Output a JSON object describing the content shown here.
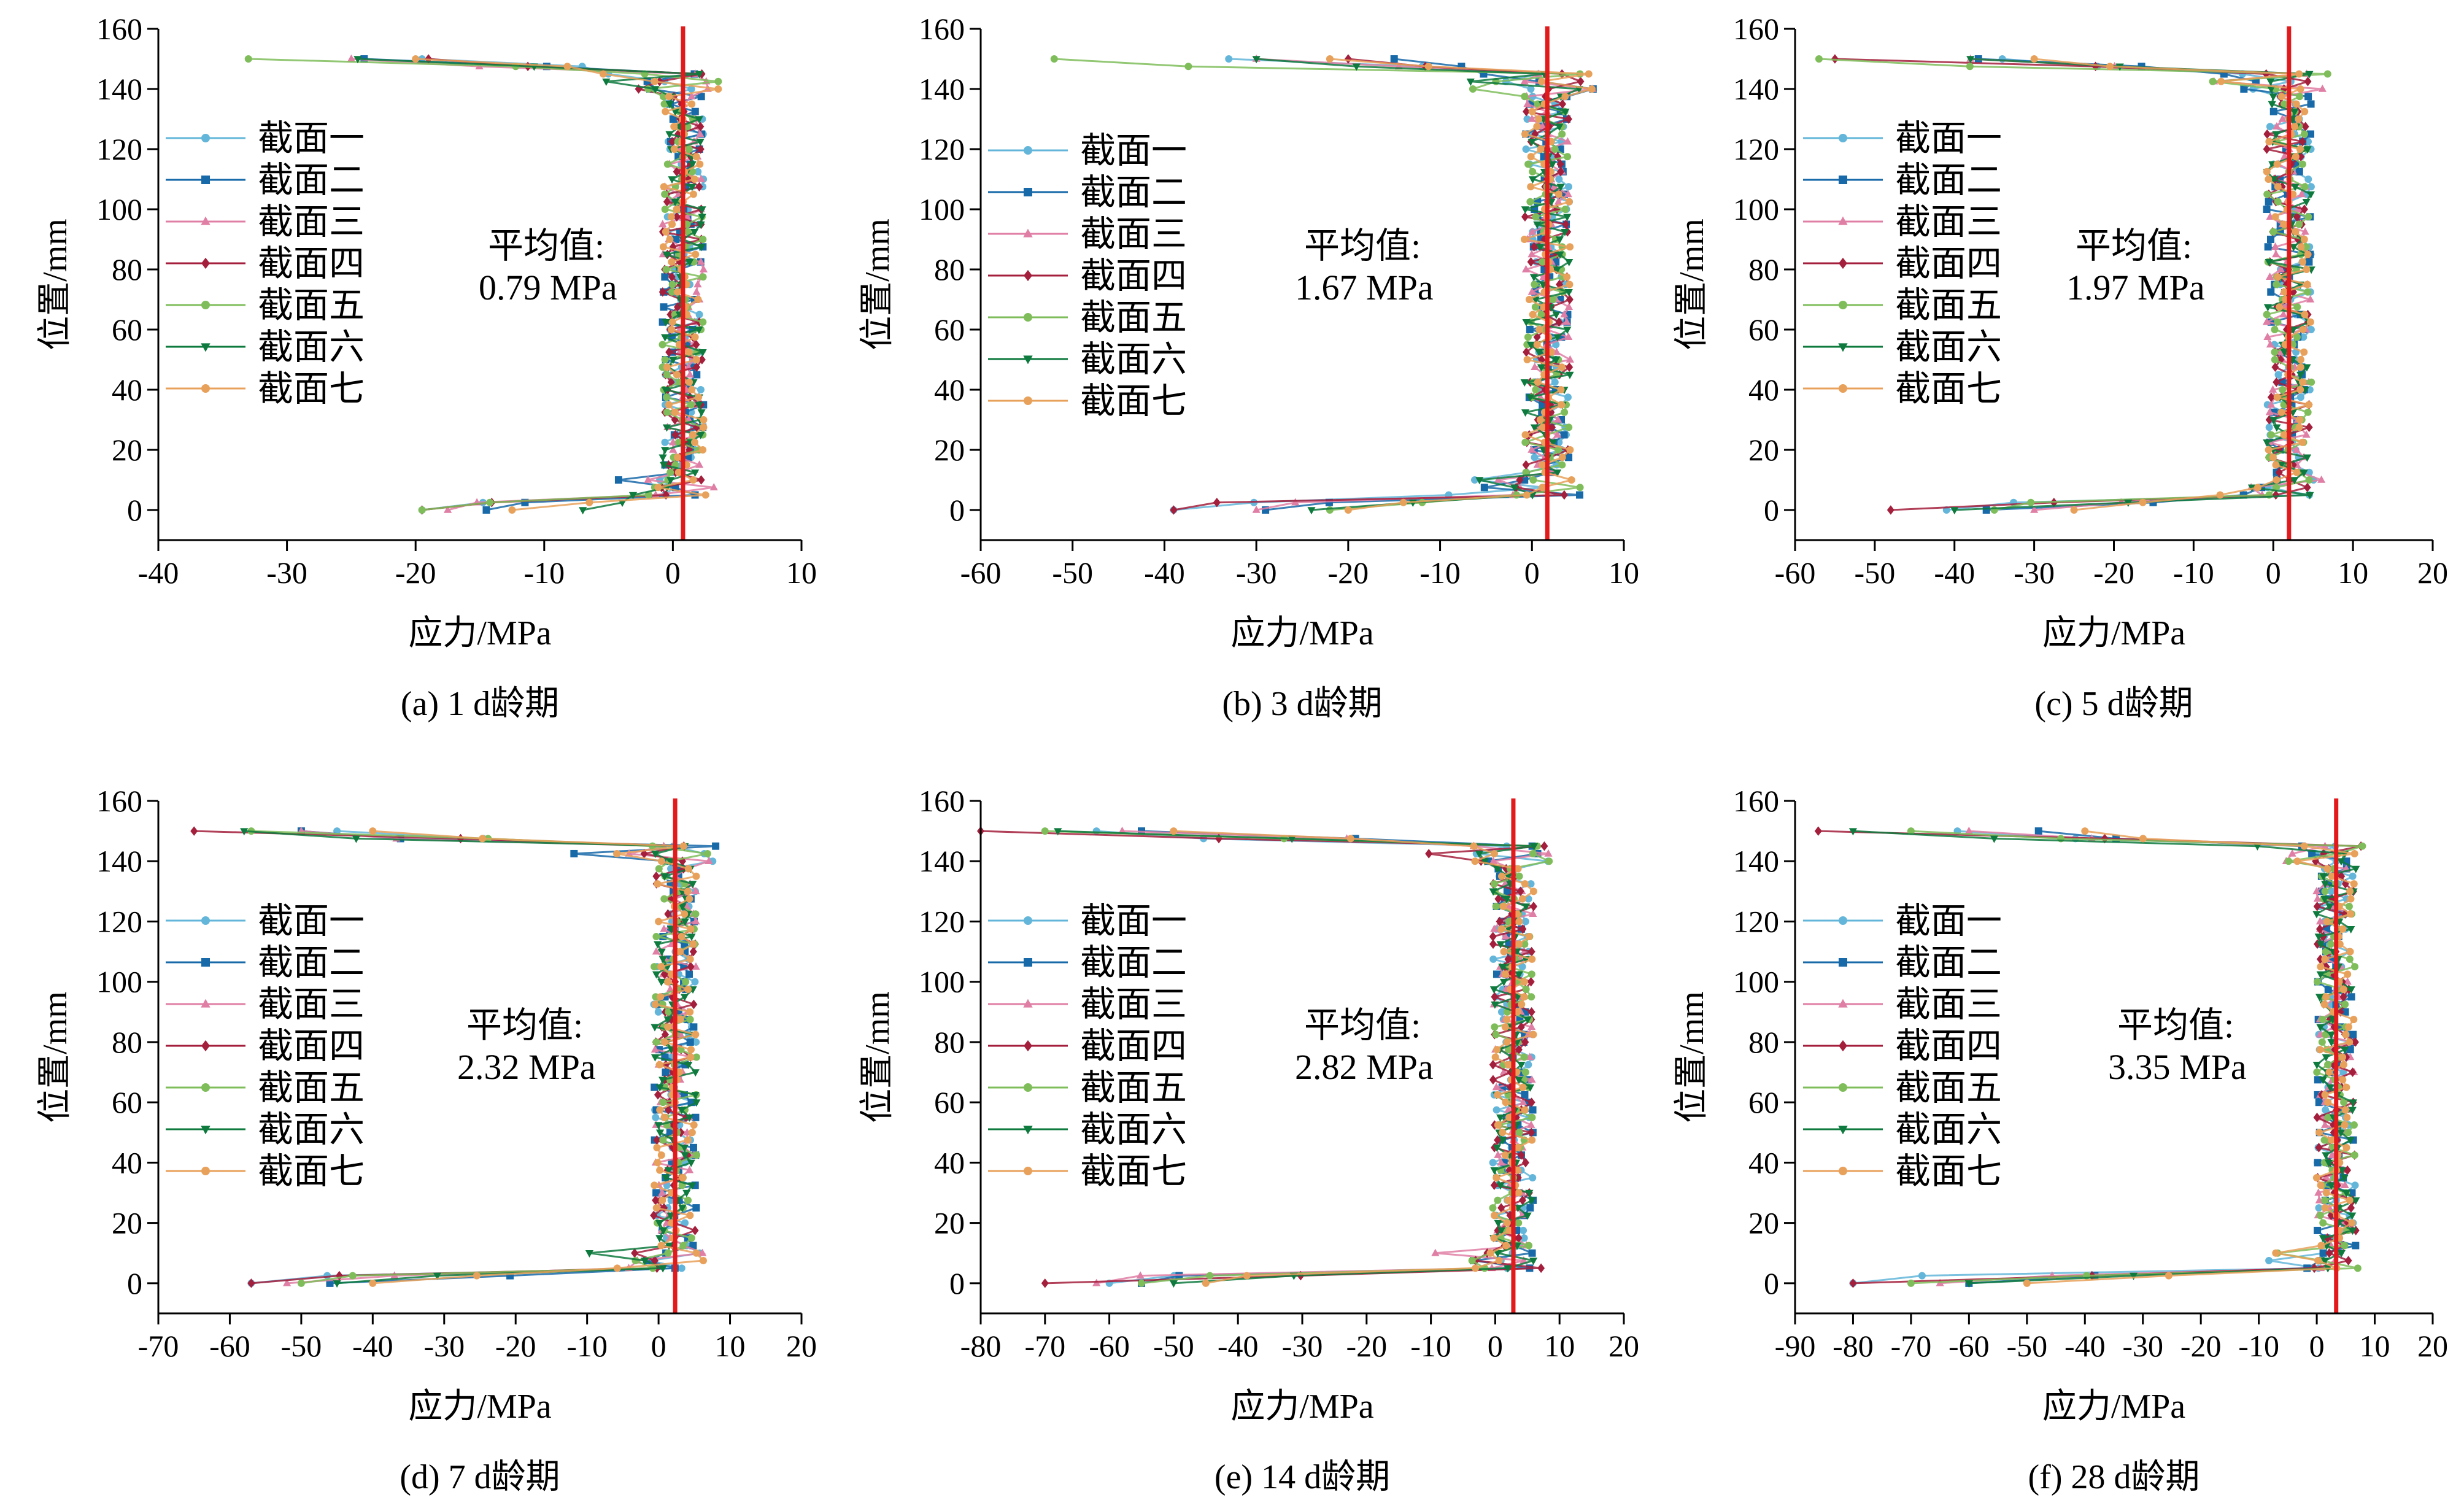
{
  "colors": {
    "series": [
      "#63b6d9",
      "#1769a8",
      "#e07fa5",
      "#a31f3c",
      "#7fbd5b",
      "#0e7a3e",
      "#e8a15b"
    ],
    "mean_line": "#e31a1c",
    "markers": [
      "circle",
      "square",
      "triangle",
      "diamond",
      "circle",
      "triangle-down",
      "circle"
    ]
  },
  "chart_data": [
    {
      "type": "scatter",
      "caption": "(a) 1 d龄期",
      "xlabel": "应力/MPa",
      "ylabel": "位置/mm",
      "xlim": [
        -40,
        10
      ],
      "xticks": [
        -40,
        -30,
        -20,
        -10,
        0,
        10
      ],
      "xtick_labels": [
        "-40",
        "-30",
        "-20",
        "-10",
        "0",
        "10"
      ],
      "ylim": [
        -10,
        160
      ],
      "yticks": [
        0,
        20,
        40,
        60,
        80,
        100,
        120,
        140,
        160
      ],
      "ytick_labels": [
        "0",
        "20",
        "40",
        "60",
        "80",
        "100",
        "120",
        "140",
        "160"
      ],
      "mean_label": "平均值:",
      "mean_value": "0.79 MPa",
      "mean": 0.79,
      "legend": [
        "截面一",
        "截面二",
        "截面三",
        "截面四",
        "截面五",
        "截面六",
        "截面七"
      ],
      "top_extremes": [
        -19.5,
        -24,
        -25,
        -19,
        -33,
        -24.5,
        -20
      ],
      "bottom_extremes": [
        -19.5,
        -14.5,
        -17.5,
        -19.5,
        -19.5,
        -7,
        -12.5
      ],
      "middle_jitter": 1.6
    },
    {
      "type": "scatter",
      "caption": "(b) 3 d龄期",
      "xlabel": "应力/MPa",
      "ylabel": "位置/mm",
      "xlim": [
        -60,
        10
      ],
      "xticks": [
        -60,
        -50,
        -40,
        -30,
        -20,
        -10,
        0,
        10
      ],
      "xtick_labels": [
        "-60",
        "-50",
        "-40",
        "-30",
        "-20",
        "-10",
        "0",
        "10"
      ],
      "ylim": [
        -10,
        160
      ],
      "yticks": [
        0,
        20,
        40,
        60,
        80,
        100,
        120,
        140,
        160
      ],
      "ytick_labels": [
        "0",
        "20",
        "40",
        "60",
        "80",
        "100",
        "120",
        "140",
        "160"
      ],
      "mean_label": "平均值:",
      "mean_value": "1.67 MPa",
      "mean": 1.67,
      "legend": [
        "截面一",
        "截面二",
        "截面三",
        "截面四",
        "截面五",
        "截面六",
        "截面七"
      ],
      "top_extremes": [
        -33,
        -15,
        -30,
        -20,
        -52,
        -30,
        -22
      ],
      "bottom_extremes": [
        -39,
        -29,
        -30,
        -39,
        -22,
        -24,
        -20
      ],
      "middle_jitter": 2.5
    },
    {
      "type": "scatter",
      "caption": "(c) 5 d龄期",
      "xlabel": "应力/MPa",
      "ylabel": "位置/mm",
      "xlim": [
        -60,
        20
      ],
      "xticks": [
        -60,
        -50,
        -40,
        -30,
        -20,
        -10,
        0,
        10,
        20
      ],
      "xtick_labels": [
        "-60",
        "-50",
        "-40",
        "-30",
        "-20",
        "-10",
        "0",
        "10",
        "20"
      ],
      "ylim": [
        -10,
        160
      ],
      "yticks": [
        0,
        20,
        40,
        60,
        80,
        100,
        120,
        140,
        160
      ],
      "ytick_labels": [
        "0",
        "20",
        "40",
        "60",
        "80",
        "100",
        "120",
        "140",
        "160"
      ],
      "mean_label": "平均值:",
      "mean_value": "1.97 MPa",
      "mean": 1.97,
      "legend": [
        "截面一",
        "截面二",
        "截面三",
        "截面四",
        "截面五",
        "截面六",
        "截面七"
      ],
      "top_extremes": [
        -34,
        -37,
        -38,
        -55,
        -57,
        -38,
        -30
      ],
      "bottom_extremes": [
        -41,
        -36,
        -30,
        -48,
        -35,
        -40,
        -25
      ],
      "middle_jitter": 2.8
    },
    {
      "type": "scatter",
      "caption": "(d) 7 d龄期",
      "xlabel": "应力/MPa",
      "ylabel": "位置/mm",
      "xlim": [
        -70,
        20
      ],
      "xticks": [
        -70,
        -60,
        -50,
        -40,
        -30,
        -20,
        -10,
        0,
        10,
        20
      ],
      "xtick_labels": [
        "-70",
        "-60",
        "-50",
        "-40",
        "-30",
        "-20",
        "-10",
        "0",
        "10",
        "20"
      ],
      "ylim": [
        -10,
        160
      ],
      "yticks": [
        0,
        20,
        40,
        60,
        80,
        100,
        120,
        140,
        160
      ],
      "ytick_labels": [
        "0",
        "20",
        "40",
        "60",
        "80",
        "100",
        "120",
        "140",
        "160"
      ],
      "mean_label": "平均值:",
      "mean_value": "2.32 MPa",
      "mean": 2.32,
      "legend": [
        "截面一",
        "截面二",
        "截面三",
        "截面四",
        "截面五",
        "截面六",
        "截面七"
      ],
      "top_extremes": [
        -45,
        -50,
        -50,
        -65,
        -57,
        -58,
        -40
      ],
      "bottom_extremes": [
        -57,
        -46,
        -52,
        -57,
        -50,
        -45,
        -40
      ],
      "middle_jitter": 3.0
    },
    {
      "type": "scatter",
      "caption": "(e) 14 d龄期",
      "xlabel": "应力/MPa",
      "ylabel": "位置/mm",
      "xlim": [
        -80,
        20
      ],
      "xticks": [
        -80,
        -70,
        -60,
        -50,
        -40,
        -30,
        -20,
        -10,
        0,
        10,
        20
      ],
      "xtick_labels": [
        "-80",
        "-70",
        "-60",
        "-50",
        "-40",
        "-30",
        "-20",
        "-10",
        "0",
        "10",
        "20"
      ],
      "ylim": [
        -10,
        160
      ],
      "yticks": [
        0,
        20,
        40,
        60,
        80,
        100,
        120,
        140,
        160
      ],
      "ytick_labels": [
        "0",
        "20",
        "40",
        "60",
        "80",
        "100",
        "120",
        "140",
        "160"
      ],
      "mean_label": "平均值:",
      "mean_value": "2.82 MPa",
      "mean": 2.82,
      "legend": [
        "截面一",
        "截面二",
        "截面三",
        "截面四",
        "截面五",
        "截面六",
        "截面七"
      ],
      "top_extremes": [
        -62,
        -55,
        -58,
        -80,
        -70,
        -68,
        -50
      ],
      "bottom_extremes": [
        -60,
        -55,
        -62,
        -70,
        -55,
        -50,
        -45
      ],
      "middle_jitter": 3.2
    },
    {
      "type": "scatter",
      "caption": "(f) 28 d龄期",
      "xlabel": "应力/MPa",
      "ylabel": "位置/mm",
      "xlim": [
        -90,
        20
      ],
      "xticks": [
        -90,
        -80,
        -70,
        -60,
        -50,
        -40,
        -30,
        -20,
        -10,
        0,
        10,
        20
      ],
      "xtick_labels": [
        "-90",
        "-80",
        "-70",
        "-60",
        "-50",
        "-40",
        "-30",
        "-20",
        "-10",
        "0",
        "10",
        "20"
      ],
      "ylim": [
        -10,
        160
      ],
      "yticks": [
        0,
        20,
        40,
        60,
        80,
        100,
        120,
        140,
        160
      ],
      "ytick_labels": [
        "0",
        "20",
        "40",
        "60",
        "80",
        "100",
        "120",
        "140",
        "160"
      ],
      "mean_label": "平均值:",
      "mean_value": "3.35 MPa",
      "mean": 3.35,
      "legend": [
        "截面一",
        "截面二",
        "截面三",
        "截面四",
        "截面五",
        "截面六",
        "截面七"
      ],
      "top_extremes": [
        -62,
        -48,
        -60,
        -86,
        -70,
        -80,
        -40
      ],
      "bottom_extremes": [
        -80,
        -60,
        -65,
        -80,
        -70,
        -60,
        -50
      ],
      "middle_jitter": 3.4
    }
  ]
}
